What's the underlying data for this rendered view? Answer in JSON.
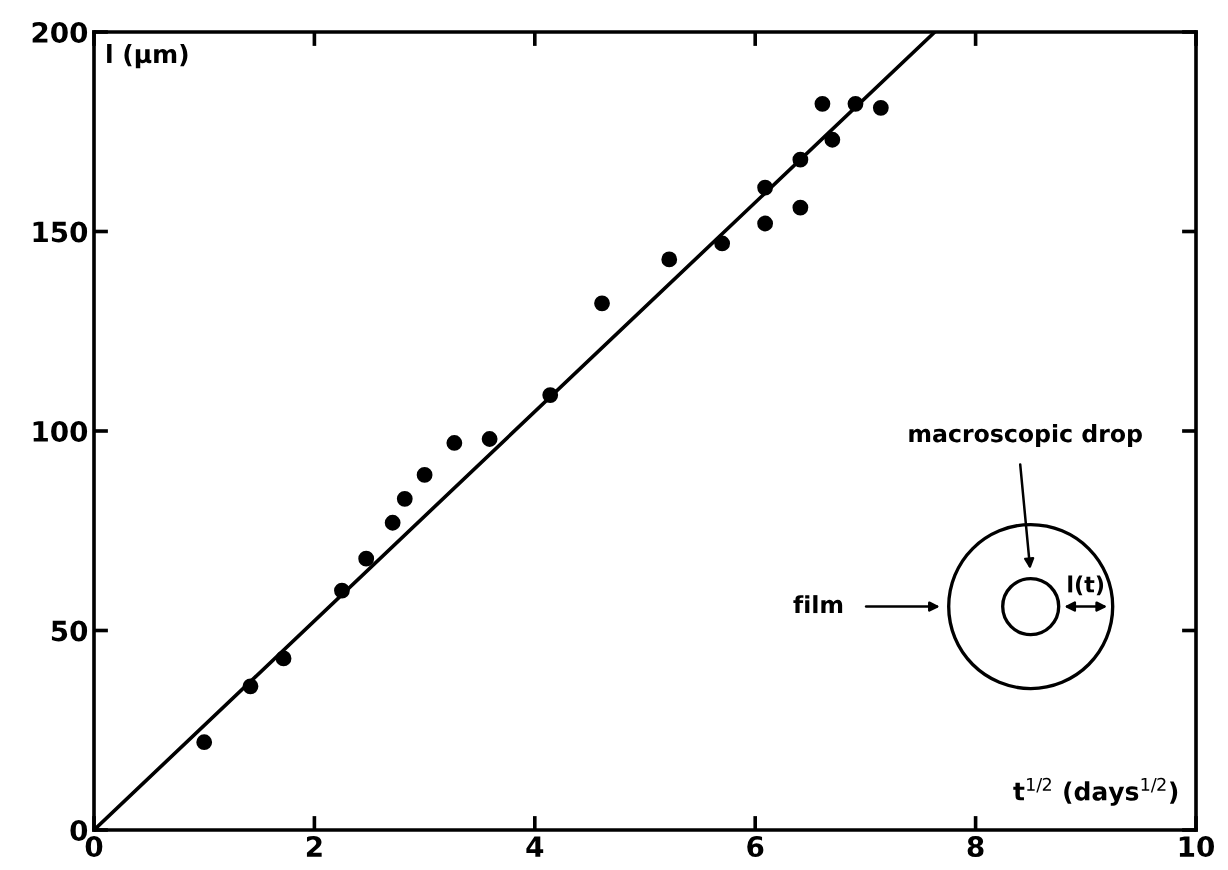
{
  "chart_data": {
    "type": "scatter",
    "xlabel": "t$^{1/2}$ (days$^{1/2}$)",
    "ylabel": "l (μm)",
    "xlim": [
      0,
      10
    ],
    "ylim": [
      0,
      200
    ],
    "xticks": [
      0,
      2,
      4,
      6,
      8,
      10
    ],
    "yticks": [
      0,
      50,
      100,
      150,
      200
    ],
    "grid": false,
    "marker": "circle",
    "series": [
      {
        "color": "#000000",
        "x": [
          1.0,
          1.42,
          1.72,
          2.25,
          2.47,
          2.71,
          2.82,
          3.0,
          3.27,
          3.59,
          4.14,
          4.61,
          5.22,
          5.7,
          6.09,
          6.09,
          6.41,
          6.41,
          6.61,
          6.7,
          6.91,
          7.14
        ],
        "values": [
          22,
          36,
          43,
          60,
          68,
          77,
          83,
          89,
          97,
          98,
          109,
          132,
          143,
          147,
          161,
          152,
          156,
          168,
          182,
          173,
          182,
          181
        ]
      },
      {
        "type": "line",
        "color": "#000000",
        "x": [
          0,
          7.63
        ],
        "values": [
          0,
          200
        ],
        "line_style": "solid",
        "marker": "none"
      }
    ],
    "annotations": [
      "macroscopic drop",
      "film",
      "l(t)"
    ]
  }
}
